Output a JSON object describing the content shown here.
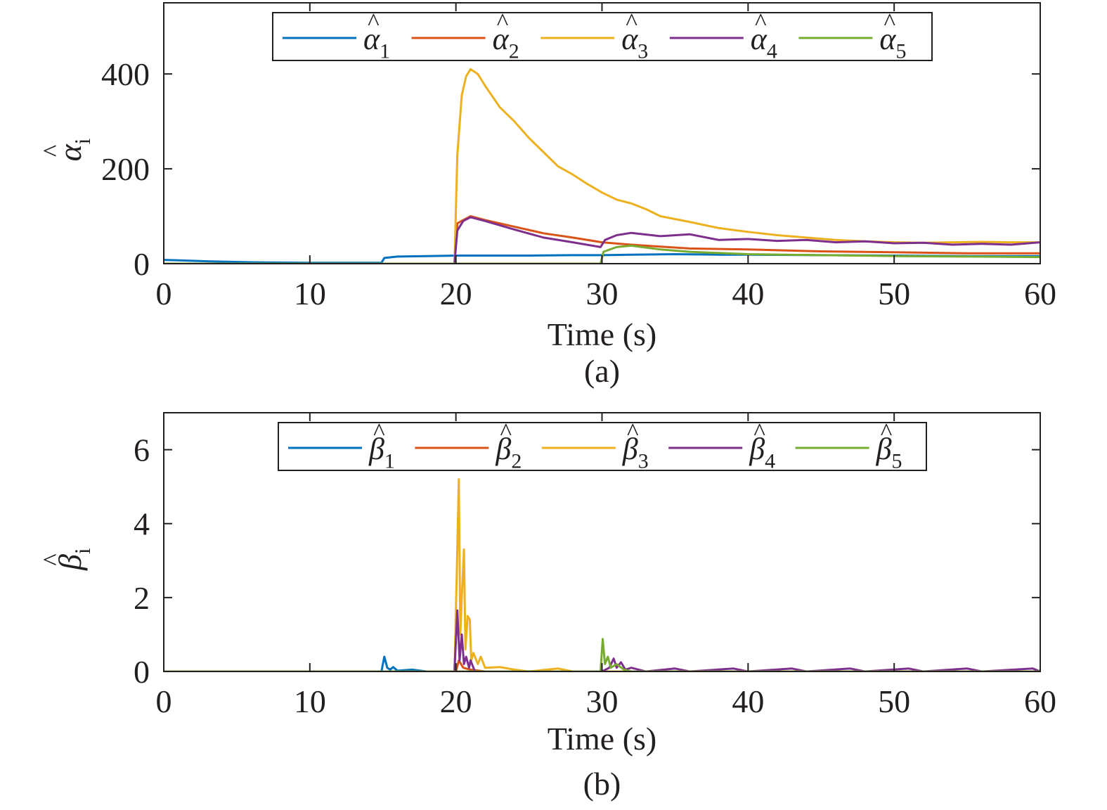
{
  "chart_data": [
    {
      "type": "line",
      "caption": "(a)",
      "xlabel": "Time (s)",
      "ylabel": {
        "symbol": "α",
        "sub": "i"
      },
      "xlim": [
        0,
        60
      ],
      "ylim": [
        0,
        550
      ],
      "xticks": [
        0,
        10,
        20,
        30,
        40,
        50,
        60
      ],
      "yticks": [
        0,
        200,
        400
      ],
      "grid": false,
      "legend_position": "top-center",
      "series": [
        {
          "name": "α",
          "sub": "1",
          "color": "#0072BD",
          "points": [
            [
              0,
              8
            ],
            [
              3,
              5
            ],
            [
              6,
              3
            ],
            [
              10,
              2
            ],
            [
              14.9,
              2
            ],
            [
              15.1,
              12
            ],
            [
              16,
              15
            ],
            [
              18,
              16
            ],
            [
              20,
              17
            ],
            [
              22,
              17
            ],
            [
              25,
              17
            ],
            [
              28,
              18
            ],
            [
              30,
              18
            ],
            [
              32,
              19
            ],
            [
              35,
              20
            ],
            [
              38,
              19
            ],
            [
              40,
              19
            ],
            [
              45,
              18
            ],
            [
              50,
              17
            ],
            [
              55,
              16
            ],
            [
              60,
              16
            ]
          ]
        },
        {
          "name": "α",
          "sub": "2",
          "color": "#D95319",
          "points": [
            [
              0,
              0
            ],
            [
              19.9,
              0
            ],
            [
              20.1,
              85
            ],
            [
              20.5,
              92
            ],
            [
              21,
              100
            ],
            [
              22,
              92
            ],
            [
              24,
              78
            ],
            [
              26,
              64
            ],
            [
              28,
              55
            ],
            [
              30,
              45
            ],
            [
              32,
              40
            ],
            [
              34,
              36
            ],
            [
              36,
              32
            ],
            [
              40,
              30
            ],
            [
              45,
              26
            ],
            [
              50,
              24
            ],
            [
              55,
              22
            ],
            [
              60,
              22
            ]
          ]
        },
        {
          "name": "α",
          "sub": "3",
          "color": "#EDB120",
          "points": [
            [
              0,
              0
            ],
            [
              19.9,
              0
            ],
            [
              20.1,
              230
            ],
            [
              20.4,
              355
            ],
            [
              20.7,
              395
            ],
            [
              21,
              410
            ],
            [
              21.5,
              400
            ],
            [
              22,
              375
            ],
            [
              23,
              330
            ],
            [
              24,
              300
            ],
            [
              25,
              265
            ],
            [
              26,
              235
            ],
            [
              27,
              205
            ],
            [
              28,
              188
            ],
            [
              29,
              168
            ],
            [
              30,
              150
            ],
            [
              31,
              135
            ],
            [
              32,
              127
            ],
            [
              33,
              115
            ],
            [
              34,
              100
            ],
            [
              36,
              88
            ],
            [
              38,
              75
            ],
            [
              40,
              67
            ],
            [
              42,
              60
            ],
            [
              44,
              55
            ],
            [
              46,
              50
            ],
            [
              48,
              47
            ],
            [
              50,
              45
            ],
            [
              52,
              44
            ],
            [
              54,
              45
            ],
            [
              56,
              46
            ],
            [
              58,
              45
            ],
            [
              60,
              45
            ]
          ]
        },
        {
          "name": "α",
          "sub": "4",
          "color": "#7E2F8E",
          "points": [
            [
              0,
              0
            ],
            [
              19.9,
              0
            ],
            [
              20.1,
              70
            ],
            [
              20.5,
              90
            ],
            [
              21,
              98
            ],
            [
              22,
              90
            ],
            [
              24,
              72
            ],
            [
              26,
              55
            ],
            [
              28,
              45
            ],
            [
              29.9,
              35
            ],
            [
              30.2,
              50
            ],
            [
              31,
              60
            ],
            [
              32,
              65
            ],
            [
              34,
              58
            ],
            [
              36,
              62
            ],
            [
              38,
              50
            ],
            [
              40,
              52
            ],
            [
              42,
              48
            ],
            [
              44,
              50
            ],
            [
              46,
              45
            ],
            [
              48,
              47
            ],
            [
              50,
              43
            ],
            [
              52,
              44
            ],
            [
              54,
              40
            ],
            [
              56,
              42
            ],
            [
              58,
              40
            ],
            [
              60,
              45
            ]
          ]
        },
        {
          "name": "α",
          "sub": "5",
          "color": "#77AC30",
          "points": [
            [
              0,
              0
            ],
            [
              29.9,
              0
            ],
            [
              30.1,
              25
            ],
            [
              31,
              35
            ],
            [
              32,
              38
            ],
            [
              34,
              30
            ],
            [
              36,
              25
            ],
            [
              40,
              20
            ],
            [
              45,
              18
            ],
            [
              50,
              16
            ],
            [
              55,
              15
            ],
            [
              60,
              14
            ]
          ]
        }
      ]
    },
    {
      "type": "line",
      "caption": "(b)",
      "xlabel": "Time (s)",
      "ylabel": {
        "symbol": "β",
        "sub": "i"
      },
      "xlim": [
        0,
        60
      ],
      "ylim": [
        0,
        7
      ],
      "xticks": [
        0,
        10,
        20,
        30,
        40,
        50,
        60
      ],
      "yticks": [
        0,
        2,
        4,
        6
      ],
      "grid": false,
      "legend_position": "top-center",
      "series": [
        {
          "name": "β",
          "sub": "1",
          "color": "#0072BD",
          "points": [
            [
              0,
              0
            ],
            [
              14.9,
              0
            ],
            [
              15.1,
              0.4
            ],
            [
              15.3,
              0.1
            ],
            [
              15.5,
              0.05
            ],
            [
              15.7,
              0.12
            ],
            [
              16,
              0.02
            ],
            [
              17,
              0.05
            ],
            [
              18,
              0
            ],
            [
              60,
              0
            ]
          ]
        },
        {
          "name": "β",
          "sub": "2",
          "color": "#D95319",
          "points": [
            [
              0,
              0
            ],
            [
              20,
              0
            ],
            [
              20.2,
              0.3
            ],
            [
              20.5,
              0.1
            ],
            [
              21,
              0.05
            ],
            [
              22,
              0
            ],
            [
              60,
              0
            ]
          ]
        },
        {
          "name": "β",
          "sub": "3",
          "color": "#EDB120",
          "points": [
            [
              0,
              0
            ],
            [
              19.9,
              0
            ],
            [
              20.05,
              2.5
            ],
            [
              20.2,
              5.2
            ],
            [
              20.3,
              1.0
            ],
            [
              20.4,
              2.0
            ],
            [
              20.55,
              3.3
            ],
            [
              20.65,
              0.6
            ],
            [
              20.8,
              1.5
            ],
            [
              20.95,
              1.4
            ],
            [
              21.05,
              0.3
            ],
            [
              21.2,
              0.5
            ],
            [
              21.5,
              0.2
            ],
            [
              21.7,
              0.4
            ],
            [
              22,
              0.1
            ],
            [
              23,
              0.12
            ],
            [
              24,
              0.05
            ],
            [
              25,
              0
            ],
            [
              27,
              0.08
            ],
            [
              28,
              0
            ],
            [
              60,
              0
            ]
          ]
        },
        {
          "name": "β",
          "sub": "4",
          "color": "#7E2F8E",
          "points": [
            [
              0,
              0
            ],
            [
              19.9,
              0
            ],
            [
              20.1,
              1.65
            ],
            [
              20.25,
              0.3
            ],
            [
              20.4,
              1.0
            ],
            [
              20.55,
              0.2
            ],
            [
              20.7,
              0.4
            ],
            [
              20.9,
              0.1
            ],
            [
              21,
              0.3
            ],
            [
              21.3,
              0
            ],
            [
              30,
              0
            ],
            [
              30.5,
              0.1
            ],
            [
              30.8,
              0.35
            ],
            [
              31,
              0.1
            ],
            [
              31.3,
              0.25
            ],
            [
              31.6,
              0.05
            ],
            [
              32,
              0.1
            ],
            [
              33,
              0
            ],
            [
              35,
              0.08
            ],
            [
              36,
              0
            ],
            [
              39,
              0.08
            ],
            [
              40,
              0
            ],
            [
              43,
              0.08
            ],
            [
              44,
              0
            ],
            [
              47,
              0.08
            ],
            [
              48,
              0
            ],
            [
              51,
              0.08
            ],
            [
              52,
              0
            ],
            [
              55,
              0.08
            ],
            [
              56,
              0
            ],
            [
              59.5,
              0.08
            ],
            [
              60,
              0
            ]
          ]
        },
        {
          "name": "β",
          "sub": "5",
          "color": "#77AC30",
          "points": [
            [
              0,
              0
            ],
            [
              29.9,
              0
            ],
            [
              30.05,
              0.88
            ],
            [
              30.2,
              0.2
            ],
            [
              30.4,
              0.4
            ],
            [
              30.6,
              0.1
            ],
            [
              31,
              0.2
            ],
            [
              31.5,
              0.05
            ],
            [
              32,
              0
            ],
            [
              60,
              0
            ]
          ]
        }
      ]
    }
  ]
}
